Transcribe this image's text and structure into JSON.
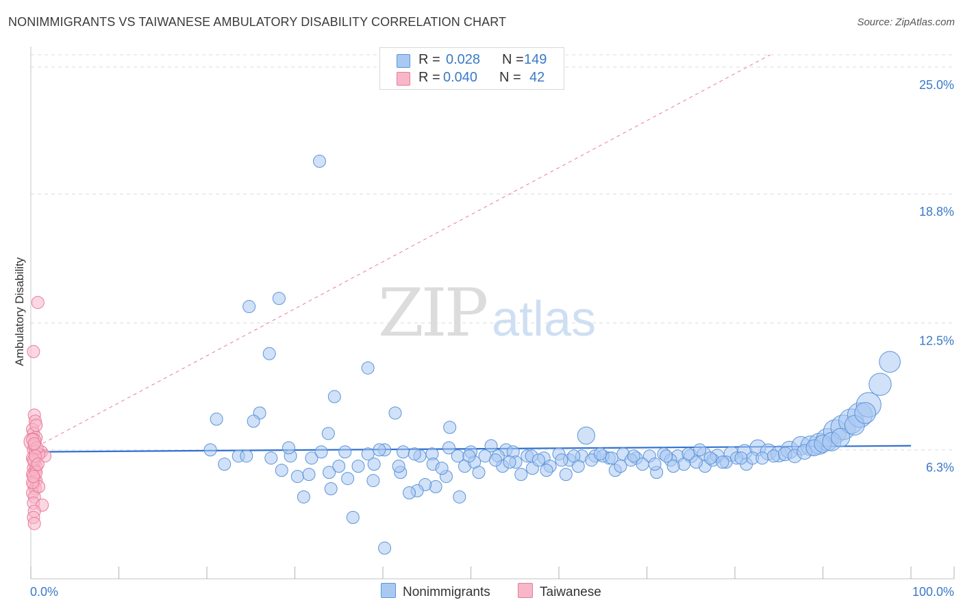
{
  "title": "NONIMMIGRANTS VS TAIWANESE AMBULATORY DISABILITY CORRELATION CHART",
  "source": "Source: ZipAtlas.com",
  "legend": {
    "rows": [
      {
        "r_label": "R =",
        "r_value": "0.028",
        "n_label": "N =",
        "n_value": "149",
        "color": "#a9c9f2"
      },
      {
        "r_label": "R =",
        "r_value": "0.040",
        "n_label": "N =",
        "n_value": "42",
        "color": "#f7b7c9"
      }
    ]
  },
  "bottom_legend": [
    {
      "label": "Nonimmigrants",
      "color": "#a9c9f2"
    },
    {
      "label": "Taiwanese",
      "color": "#f7b7c9"
    }
  ],
  "colors": {
    "blue_fill": "#a9c9f2",
    "blue_stroke": "#5b93d8",
    "blue_line": "#2f6fcf",
    "pink_fill": "#f7b7c9",
    "pink_stroke": "#e9799c",
    "pink_line": "#e9799c",
    "axis_label": "#3a78c8",
    "grid": "#dcdcdc"
  },
  "watermark": {
    "part1": "ZIP",
    "part2": "atlas"
  },
  "chart_data": {
    "type": "scatter",
    "title": "NONIMMIGRANTS VS TAIWANESE AMBULATORY DISABILITY CORRELATION CHART",
    "xlabel": "",
    "ylabel": "Ambulatory Disability",
    "xlim": [
      0,
      100
    ],
    "ylim": [
      0,
      25.6
    ],
    "x_tick_labels": [
      "0.0%",
      "100.0%"
    ],
    "y_ticks": [
      6.3,
      12.5,
      18.8,
      25.0
    ],
    "y_tick_labels": [
      "6.3%",
      "12.5%",
      "18.8%",
      "25.0%"
    ],
    "trend_lines": [
      {
        "series": "Nonimmigrants",
        "x": [
          0,
          100
        ],
        "y": [
          6.2,
          6.5
        ],
        "style": "solid"
      },
      {
        "series": "Taiwanese",
        "x": [
          0,
          84
        ],
        "y": [
          6.3,
          25.6
        ],
        "style": "dashed"
      }
    ],
    "series": [
      {
        "name": "Nonimmigrants",
        "points": [
          [
            32.8,
            20.4,
            1
          ],
          [
            24.8,
            13.3,
            1
          ],
          [
            28.2,
            13.7,
            1
          ],
          [
            27.1,
            11.0,
            1
          ],
          [
            38.3,
            10.3,
            1
          ],
          [
            34.5,
            8.9,
            1
          ],
          [
            26.0,
            8.1,
            1
          ],
          [
            21.1,
            7.8,
            1
          ],
          [
            25.3,
            7.7,
            1
          ],
          [
            33.8,
            7.1,
            1
          ],
          [
            41.4,
            8.1,
            1
          ],
          [
            47.6,
            7.4,
            1
          ],
          [
            63.1,
            7.0,
            1.4
          ],
          [
            54.0,
            6.3,
            1
          ],
          [
            27.3,
            5.9,
            1
          ],
          [
            29.5,
            6.0,
            1
          ],
          [
            31.9,
            5.9,
            1
          ],
          [
            35.7,
            6.2,
            1
          ],
          [
            38.3,
            6.1,
            1
          ],
          [
            40.2,
            6.3,
            1
          ],
          [
            42.3,
            6.2,
            1
          ],
          [
            44.2,
            6.0,
            1
          ],
          [
            45.6,
            6.1,
            1
          ],
          [
            47.5,
            6.4,
            1
          ],
          [
            48.5,
            6.0,
            1
          ],
          [
            50.0,
            6.2,
            1
          ],
          [
            51.6,
            6.0,
            1
          ],
          [
            53.1,
            6.0,
            1
          ],
          [
            54.8,
            6.2,
            1
          ],
          [
            56.4,
            6.0,
            1
          ],
          [
            58.3,
            5.9,
            1
          ],
          [
            60.0,
            6.1,
            1
          ],
          [
            61.2,
            5.8,
            1
          ],
          [
            62.6,
            6.0,
            1
          ],
          [
            64.1,
            6.0,
            1
          ],
          [
            65.7,
            5.9,
            1
          ],
          [
            67.3,
            6.1,
            1
          ],
          [
            68.8,
            5.9,
            1
          ],
          [
            70.3,
            6.0,
            1
          ],
          [
            71.9,
            6.1,
            1
          ],
          [
            73.5,
            6.0,
            1
          ],
          [
            75.0,
            6.0,
            1.1
          ],
          [
            76.5,
            6.1,
            1.1
          ],
          [
            78.0,
            6.0,
            1.1
          ],
          [
            79.6,
            6.1,
            1.2
          ],
          [
            81.1,
            6.2,
            1.2
          ],
          [
            82.6,
            6.4,
            1.3
          ],
          [
            83.8,
            6.2,
            1.3
          ],
          [
            85.0,
            6.1,
            1.3
          ],
          [
            86.2,
            6.3,
            1.4
          ],
          [
            87.5,
            6.5,
            1.5
          ],
          [
            88.6,
            6.5,
            1.6
          ],
          [
            89.6,
            6.6,
            1.7
          ],
          [
            90.5,
            6.8,
            1.8
          ],
          [
            91.4,
            7.2,
            1.9
          ],
          [
            92.3,
            7.4,
            2.0
          ],
          [
            93.2,
            7.7,
            2.0
          ],
          [
            94.2,
            8.0,
            2.0
          ],
          [
            95.2,
            8.5,
            2.0
          ],
          [
            96.5,
            9.5,
            1.8
          ],
          [
            97.6,
            10.6,
            1.7
          ],
          [
            31.0,
            4.0,
            1
          ],
          [
            36.6,
            3.0,
            1
          ],
          [
            46.0,
            4.5,
            1
          ],
          [
            49.3,
            5.5,
            1
          ],
          [
            57.0,
            5.4,
            1
          ],
          [
            33.9,
            5.2,
            1
          ],
          [
            30.3,
            5.0,
            1
          ],
          [
            44.8,
            4.6,
            1
          ],
          [
            37.2,
            5.5,
            1
          ],
          [
            52.3,
            6.5,
            1
          ],
          [
            55.1,
            5.7,
            1
          ],
          [
            59.0,
            5.5,
            1
          ],
          [
            23.6,
            6.0,
            1
          ],
          [
            22.0,
            5.6,
            1
          ],
          [
            28.5,
            5.3,
            1
          ],
          [
            34.1,
            4.4,
            1
          ],
          [
            40.2,
            1.5,
            1
          ],
          [
            43.9,
            4.3,
            1
          ],
          [
            48.7,
            4.0,
            1
          ],
          [
            60.8,
            5.1,
            1
          ],
          [
            66.4,
            5.3,
            1
          ],
          [
            71.1,
            5.2,
            1
          ],
          [
            76.6,
            5.5,
            1
          ],
          [
            81.3,
            5.6,
            1
          ],
          [
            20.4,
            6.3,
            1
          ],
          [
            24.5,
            6.0,
            1
          ],
          [
            29.3,
            6.4,
            1
          ],
          [
            35.0,
            5.5,
            1
          ],
          [
            39.0,
            5.6,
            1
          ],
          [
            42.0,
            5.2,
            1
          ],
          [
            45.7,
            5.6,
            1
          ],
          [
            50.4,
            5.7,
            1
          ],
          [
            53.6,
            5.5,
            1
          ],
          [
            56.9,
            6.0,
            1
          ],
          [
            62.2,
            5.5,
            1
          ],
          [
            67.0,
            5.5,
            1
          ],
          [
            69.5,
            5.6,
            1
          ],
          [
            72.7,
            5.8,
            1
          ],
          [
            74.2,
            5.6,
            1
          ],
          [
            77.5,
            5.8,
            1
          ],
          [
            79.0,
            5.7,
            1
          ],
          [
            80.2,
            5.9,
            1
          ],
          [
            82.0,
            5.9,
            1
          ],
          [
            31.6,
            5.1,
            1
          ],
          [
            36.0,
            4.9,
            1
          ],
          [
            38.9,
            4.8,
            1
          ],
          [
            41.8,
            5.5,
            1
          ],
          [
            43.0,
            4.2,
            1
          ],
          [
            47.2,
            5.0,
            1
          ],
          [
            50.9,
            5.2,
            1
          ],
          [
            52.8,
            5.8,
            1
          ],
          [
            55.7,
            5.1,
            1
          ],
          [
            58.6,
            5.3,
            1
          ],
          [
            60.3,
            5.8,
            1
          ],
          [
            63.7,
            5.8,
            1
          ],
          [
            65.0,
            6.0,
            1
          ],
          [
            68.2,
            5.8,
            1
          ],
          [
            70.9,
            5.6,
            1
          ],
          [
            73.0,
            5.5,
            1
          ],
          [
            75.6,
            5.7,
            1
          ],
          [
            77.2,
            5.9,
            1
          ],
          [
            78.6,
            5.7,
            1
          ],
          [
            80.7,
            5.9,
            1
          ],
          [
            83.1,
            5.9,
            1
          ],
          [
            84.4,
            6.0,
            1
          ],
          [
            85.7,
            6.1,
            1.1
          ],
          [
            86.8,
            6.0,
            1.1
          ],
          [
            87.9,
            6.2,
            1.2
          ],
          [
            89.0,
            6.4,
            1.3
          ],
          [
            90.0,
            6.6,
            1.4
          ],
          [
            91.0,
            6.7,
            1.5
          ],
          [
            92.0,
            6.9,
            1.5
          ],
          [
            93.6,
            7.5,
            1.6
          ],
          [
            94.8,
            8.1,
            1.7
          ],
          [
            33.0,
            6.2,
            1
          ],
          [
            39.6,
            6.3,
            1
          ],
          [
            43.6,
            6.1,
            1
          ],
          [
            46.7,
            5.4,
            1
          ],
          [
            49.8,
            6.0,
            1
          ],
          [
            54.4,
            5.7,
            1
          ],
          [
            57.7,
            5.8,
            1
          ],
          [
            61.7,
            6.0,
            1
          ],
          [
            64.7,
            6.1,
            1
          ],
          [
            66.0,
            5.9,
            1
          ],
          [
            68.5,
            6.0,
            1
          ],
          [
            72.2,
            6.0,
            1
          ],
          [
            74.7,
            6.1,
            1
          ],
          [
            76.0,
            6.3,
            1
          ]
        ]
      },
      {
        "name": "Taiwanese",
        "points": [
          [
            0.8,
            13.5,
            1
          ],
          [
            0.3,
            11.1,
            1
          ],
          [
            0.4,
            8.0,
            1
          ],
          [
            0.5,
            7.7,
            1
          ],
          [
            0.2,
            7.3,
            1
          ],
          [
            0.3,
            7.1,
            1
          ],
          [
            0.6,
            6.9,
            1
          ],
          [
            0.2,
            6.7,
            1.4
          ],
          [
            0.4,
            6.5,
            1
          ],
          [
            0.3,
            6.3,
            1
          ],
          [
            0.5,
            6.2,
            1
          ],
          [
            1.2,
            6.2,
            1
          ],
          [
            1.6,
            6.0,
            1
          ],
          [
            0.9,
            6.1,
            1
          ],
          [
            0.2,
            5.9,
            1
          ],
          [
            0.4,
            5.7,
            1
          ],
          [
            0.6,
            5.5,
            1
          ],
          [
            0.3,
            5.4,
            1
          ],
          [
            0.5,
            5.3,
            1
          ],
          [
            0.2,
            5.1,
            1
          ],
          [
            0.4,
            4.9,
            1
          ],
          [
            0.6,
            4.8,
            1
          ],
          [
            0.3,
            4.6,
            1
          ],
          [
            0.5,
            4.4,
            1
          ],
          [
            0.2,
            4.2,
            1
          ],
          [
            0.4,
            4.0,
            1
          ],
          [
            0.3,
            3.7,
            1
          ],
          [
            1.3,
            3.6,
            1
          ],
          [
            0.4,
            3.3,
            1
          ],
          [
            0.3,
            3.0,
            1
          ],
          [
            0.4,
            2.7,
            1
          ],
          [
            0.2,
            6.8,
            1
          ],
          [
            0.7,
            6.4,
            1
          ],
          [
            0.3,
            5.8,
            1
          ],
          [
            0.6,
            5.2,
            1
          ],
          [
            0.9,
            4.5,
            1
          ],
          [
            0.2,
            4.7,
            1
          ],
          [
            0.5,
            6.0,
            1
          ],
          [
            0.8,
            5.6,
            1
          ],
          [
            0.3,
            5.0,
            1
          ],
          [
            0.6,
            7.5,
            1
          ],
          [
            0.4,
            6.6,
            1
          ]
        ]
      }
    ]
  }
}
